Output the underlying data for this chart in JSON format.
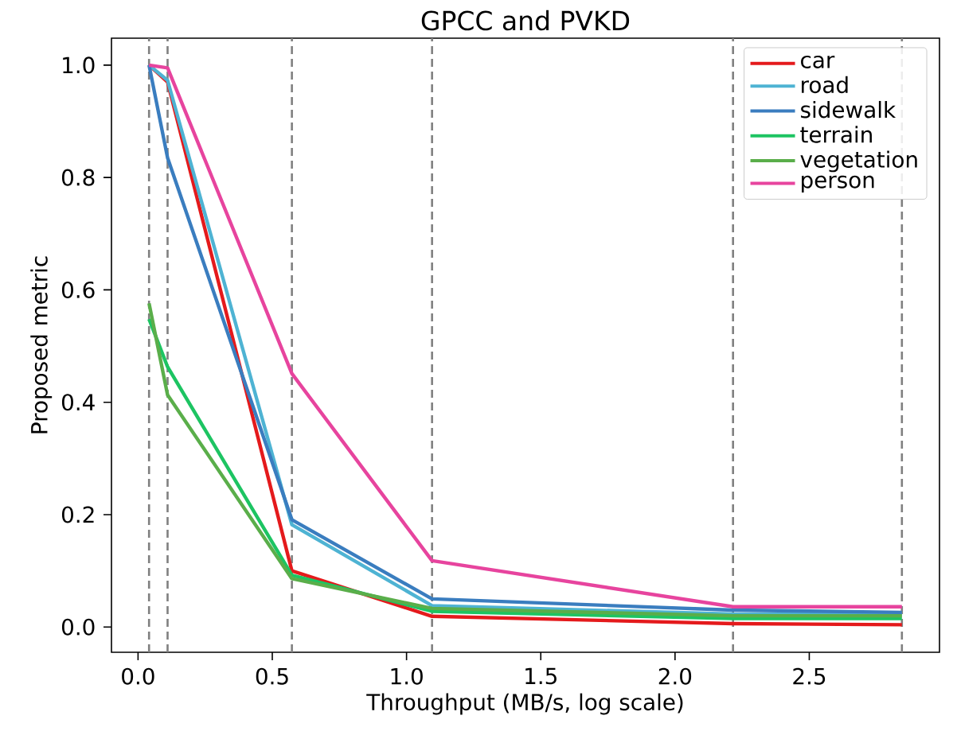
{
  "chart_data": {
    "type": "line",
    "title": "GPCC and PVKD",
    "xlabel": "Throughput (MB/s, log scale)",
    "ylabel": "Proposed metric",
    "x": [
      0.041,
      0.11,
      0.573,
      1.095,
      2.216,
      2.845
    ],
    "series": [
      {
        "name": "car",
        "color": "#e41a1c",
        "values": [
          1.0,
          0.97,
          0.1,
          0.019,
          0.006,
          0.004
        ]
      },
      {
        "name": "road",
        "color": "#4eb3d3",
        "values": [
          1.0,
          0.973,
          0.182,
          0.038,
          0.023,
          0.022
        ]
      },
      {
        "name": "sidewalk",
        "color": "#3a7dbf",
        "values": [
          1.0,
          0.835,
          0.191,
          0.05,
          0.03,
          0.026
        ]
      },
      {
        "name": "terrain",
        "color": "#1dc462",
        "values": [
          0.548,
          0.463,
          0.092,
          0.028,
          0.015,
          0.015
        ]
      },
      {
        "name": "vegetation",
        "color": "#5aae4a",
        "values": [
          0.576,
          0.413,
          0.086,
          0.033,
          0.02,
          0.02
        ]
      },
      {
        "name": "person",
        "color": "#e7449e",
        "values": [
          1.0,
          0.995,
          0.451,
          0.118,
          0.036,
          0.036
        ]
      }
    ],
    "xlim": [
      -0.099,
      2.985
    ],
    "ylim": [
      -0.045,
      1.048
    ],
    "xticks": [
      {
        "value": 0,
        "label": "0.0"
      },
      {
        "value": 0.5,
        "label": "0.5"
      },
      {
        "value": 1,
        "label": "1.0"
      },
      {
        "value": 1.5,
        "label": "1.5"
      },
      {
        "value": 2,
        "label": "2.0"
      },
      {
        "value": 2.5,
        "label": "2.5"
      }
    ],
    "yticks": [
      {
        "value": 0,
        "label": "0.0"
      },
      {
        "value": 0.2,
        "label": "0.2"
      },
      {
        "value": 0.4,
        "label": "0.4"
      },
      {
        "value": 0.6,
        "label": "0.6"
      },
      {
        "value": 0.8,
        "label": "0.8"
      },
      {
        "value": 1,
        "label": "1.0"
      }
    ],
    "ref_lines": [
      {
        "axis": "x",
        "value": 0.041,
        "color": "#808080",
        "line_style": "dashed"
      },
      {
        "axis": "x",
        "value": 0.11,
        "color": "#808080",
        "line_style": "dashed"
      },
      {
        "axis": "x",
        "value": 0.573,
        "color": "#808080",
        "line_style": "dashed"
      },
      {
        "axis": "x",
        "value": 1.095,
        "color": "#808080",
        "line_style": "dashed"
      },
      {
        "axis": "x",
        "value": 2.216,
        "color": "#808080",
        "line_style": "dashed"
      },
      {
        "axis": "x",
        "value": 2.845,
        "color": "#808080",
        "line_style": "dashed"
      }
    ],
    "legend": "top right",
    "grid": false,
    "marker": "none",
    "line_style": "solid"
  }
}
